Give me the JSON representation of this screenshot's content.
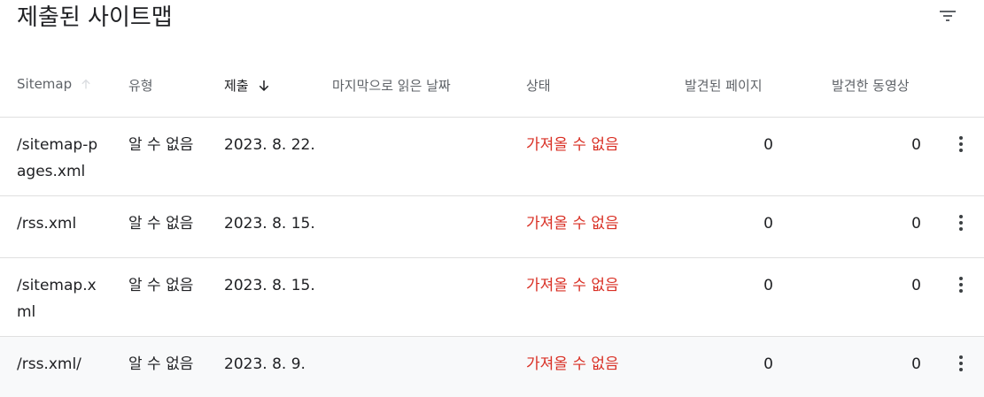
{
  "page": {
    "title": "제출된 사이트맵"
  },
  "columns": {
    "sitemap": "Sitemap",
    "type": "유형",
    "submitted": "제출",
    "last_read": "마지막으로 읽은 날짜",
    "status": "상태",
    "discovered_pages": "발견된 페이지",
    "discovered_videos": "발견한 동영상"
  },
  "sort": {
    "column": "submitted",
    "direction": "descending"
  },
  "rows": [
    {
      "sitemap": "/sitemap-pages.xml",
      "type": "알 수 없음",
      "submitted": "2023. 8. 22.",
      "last_read": "",
      "status": "가져올 수 없음",
      "pages": "0",
      "videos": "0"
    },
    {
      "sitemap": "/rss.xml",
      "type": "알 수 없음",
      "submitted": "2023. 8. 15.",
      "last_read": "",
      "status": "가져올 수 없음",
      "pages": "0",
      "videos": "0"
    },
    {
      "sitemap": "/sitemap.xml",
      "type": "알 수 없음",
      "submitted": "2023. 8. 15.",
      "last_read": "",
      "status": "가져올 수 없음",
      "pages": "0",
      "videos": "0"
    },
    {
      "sitemap": "/rss.xml/",
      "type": "알 수 없음",
      "submitted": "2023. 8. 9.",
      "last_read": "",
      "status": "가져올 수 없음",
      "pages": "0",
      "videos": "0"
    }
  ],
  "icons": {
    "filter": "filter-list-icon",
    "sort_up": "arrow-up-icon",
    "sort_down": "arrow-down-icon",
    "row_menu": "more-vert-icon"
  },
  "colors": {
    "status_error": "#d93025",
    "text_primary": "#202124",
    "text_secondary": "#5f6368"
  }
}
